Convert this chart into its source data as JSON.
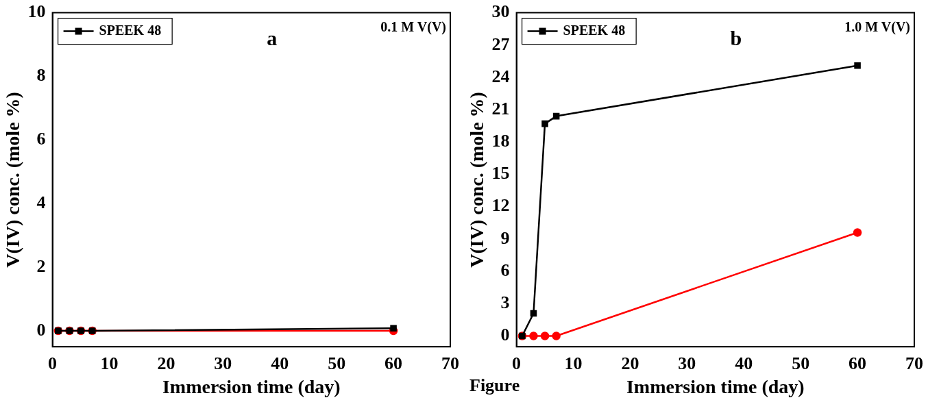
{
  "chart_data": [
    {
      "type": "line",
      "xlabel": "Immersion time (day)",
      "ylabel": "V(IV) conc. (mole %)",
      "annotations": [
        "a",
        "0.1 M V(V)"
      ],
      "xlim": [
        0,
        70
      ],
      "xticks": [
        0,
        10,
        20,
        30,
        40,
        50,
        60,
        70
      ],
      "ylim": [
        -0.5,
        10
      ],
      "yticks": [
        0,
        2,
        4,
        6,
        8,
        10
      ],
      "grid": false,
      "legend": "top left",
      "x": [
        1,
        3,
        5,
        7,
        60
      ],
      "series": [
        {
          "name": "SPEEK 48",
          "color": "#000000",
          "marker": "square",
          "values": [
            0,
            0,
            0,
            0,
            0.08
          ]
        },
        {
          "color": "#ff0000",
          "marker": "circle",
          "values": [
            0,
            0,
            0,
            0,
            0
          ]
        }
      ]
    },
    {
      "type": "line",
      "xlabel": "Immersion time (day)",
      "ylabel": "V(IV) conc. (mole %)",
      "annotations": [
        "b",
        "1.0 M V(V)",
        "Figure"
      ],
      "xlim": [
        0,
        70
      ],
      "xticks": [
        0,
        10,
        20,
        30,
        40,
        50,
        60,
        70
      ],
      "ylim": [
        -1,
        30
      ],
      "yticks": [
        0,
        3,
        6,
        9,
        12,
        15,
        18,
        21,
        24,
        27,
        30
      ],
      "grid": false,
      "legend": "top left",
      "x": [
        1,
        3,
        5,
        7,
        60
      ],
      "series": [
        {
          "name": "SPEEK 48",
          "color": "#000000",
          "marker": "square",
          "values": [
            0,
            2.1,
            19.7,
            20.4,
            25.1
          ]
        },
        {
          "color": "#ff0000",
          "marker": "circle",
          "values": [
            0,
            0,
            0,
            0,
            9.6
          ]
        }
      ]
    }
  ]
}
